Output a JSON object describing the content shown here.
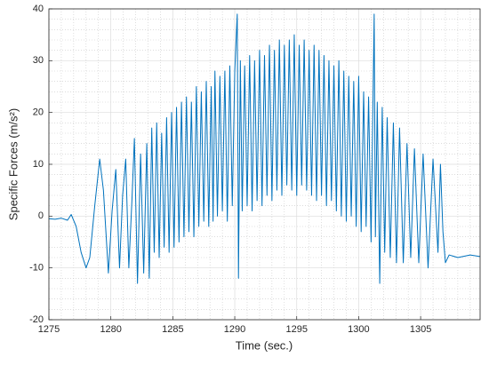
{
  "chart_data": {
    "type": "line",
    "xlabel": "Time (sec.)",
    "ylabel": "Specific Forces (m/s²)",
    "color": "#0072bd",
    "grid": true,
    "minor_grid": true,
    "xlim": [
      1275,
      1309.8
    ],
    "ylim": [
      -20,
      40
    ],
    "xticks": [
      1275,
      1280,
      1285,
      1290,
      1295,
      1300,
      1305
    ],
    "yticks": [
      -20,
      -10,
      0,
      10,
      20,
      30,
      40
    ],
    "xminorticks": [
      1276,
      1277,
      1278,
      1279,
      1281,
      1282,
      1283,
      1284,
      1286,
      1287,
      1288,
      1289,
      1291,
      1292,
      1293,
      1294,
      1296,
      1297,
      1298,
      1299,
      1301,
      1302,
      1303,
      1304,
      1306,
      1307,
      1308,
      1309
    ],
    "yminorticks": [
      -18,
      -16,
      -14,
      -12,
      -8,
      -6,
      -4,
      -2,
      2,
      4,
      6,
      8,
      12,
      14,
      16,
      18,
      22,
      24,
      26,
      28,
      32,
      34,
      36,
      38
    ],
    "x": [
      1275.0,
      1275.5,
      1276.0,
      1276.5,
      1276.8,
      1277.2,
      1277.6,
      1278.0,
      1278.3,
      1278.7,
      1279.1,
      1279.4,
      1279.8,
      1280.1,
      1280.4,
      1280.7,
      1280.95,
      1281.2,
      1281.45,
      1281.7,
      1281.9,
      1282.15,
      1282.4,
      1282.65,
      1282.9,
      1283.1,
      1283.3,
      1283.5,
      1283.7,
      1283.9,
      1284.1,
      1284.3,
      1284.5,
      1284.7,
      1284.9,
      1285.1,
      1285.3,
      1285.5,
      1285.7,
      1285.9,
      1286.1,
      1286.3,
      1286.5,
      1286.7,
      1286.9,
      1287.1,
      1287.3,
      1287.5,
      1287.7,
      1287.9,
      1288.1,
      1288.25,
      1288.4,
      1288.6,
      1288.8,
      1289.0,
      1289.2,
      1289.4,
      1289.6,
      1289.8,
      1290.0,
      1290.2,
      1290.3,
      1290.45,
      1290.6,
      1290.8,
      1291.0,
      1291.2,
      1291.4,
      1291.6,
      1291.8,
      1292.0,
      1292.2,
      1292.4,
      1292.6,
      1292.8,
      1293.0,
      1293.2,
      1293.4,
      1293.6,
      1293.8,
      1294.0,
      1294.2,
      1294.4,
      1294.6,
      1294.8,
      1295.0,
      1295.2,
      1295.4,
      1295.6,
      1295.8,
      1296.0,
      1296.2,
      1296.4,
      1296.6,
      1296.8,
      1297.0,
      1297.2,
      1297.4,
      1297.6,
      1297.8,
      1298.0,
      1298.2,
      1298.4,
      1298.6,
      1298.8,
      1299.0,
      1299.2,
      1299.4,
      1299.6,
      1299.8,
      1300.0,
      1300.2,
      1300.4,
      1300.6,
      1300.8,
      1301.0,
      1301.25,
      1301.35,
      1301.5,
      1301.7,
      1301.9,
      1302.1,
      1302.3,
      1302.55,
      1302.8,
      1303.05,
      1303.3,
      1303.6,
      1303.9,
      1304.2,
      1304.5,
      1304.85,
      1305.2,
      1305.6,
      1306.0,
      1306.4,
      1306.6,
      1306.8,
      1307.0,
      1307.3,
      1308.0,
      1309.0,
      1309.8
    ],
    "values": [
      -0.5,
      -0.6,
      -0.4,
      -0.8,
      0.3,
      -2,
      -7,
      -10,
      -8,
      2,
      11,
      5,
      -11,
      1,
      9,
      -10,
      4,
      11,
      -10,
      3,
      15,
      -13,
      12,
      -11,
      14,
      -12,
      17,
      -7,
      18,
      -8,
      16,
      -6,
      19,
      -7,
      20,
      -6,
      21,
      -5,
      22,
      -4,
      23,
      -3,
      22,
      -4,
      25,
      -2,
      24,
      -1,
      26,
      -2,
      25,
      -1,
      28,
      0,
      27,
      1,
      28,
      -1,
      29,
      2,
      28,
      39,
      -12,
      30,
      1,
      29,
      2,
      31,
      1,
      30,
      3,
      32,
      2,
      31,
      4,
      33,
      3,
      32,
      5,
      34,
      4,
      33,
      6,
      34,
      5,
      35,
      4,
      33,
      6,
      34,
      5,
      32,
      4,
      33,
      3,
      32,
      4,
      31,
      2,
      30,
      3,
      29,
      1,
      30,
      0,
      28,
      -1,
      27,
      0,
      26,
      -2,
      27,
      -3,
      24,
      -2,
      23,
      -5,
      39,
      -4,
      22,
      -13,
      21,
      -7,
      19,
      -8,
      18,
      -9,
      17,
      -9,
      14,
      -8,
      13,
      -9,
      12,
      -10,
      11,
      -7,
      10,
      -3,
      -9,
      -7.5,
      -8,
      -7.5,
      -7.8
    ]
  }
}
